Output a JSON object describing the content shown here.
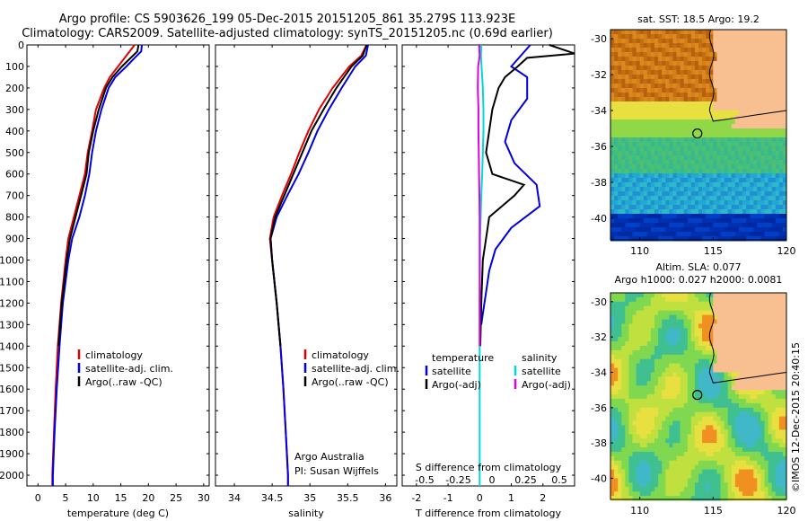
{
  "header": {
    "line1": "Argo profile: CS 5903626_199 05-Dec-2015 20151205_861 35.279S 113.923E",
    "line2": "Climatology: CARS2009. Satellite-adjusted climatology: synTS_20151205.nc (0.69d earlier)"
  },
  "chart_data": [
    {
      "type": "line",
      "xlabel": "temperature (deg C)",
      "ylabel": "",
      "xlim": [
        -2,
        31
      ],
      "ylim": [
        2050,
        0
      ],
      "xticks": [
        "0",
        "5",
        "10",
        "15",
        "20",
        "25",
        "30"
      ],
      "xtick_values": [
        0,
        5,
        10,
        15,
        20,
        25,
        30
      ],
      "yticks": [
        "0",
        "100",
        "200",
        "300",
        "400",
        "500",
        "600",
        "700",
        "800",
        "900",
        "1000",
        "1100",
        "1200",
        "1300",
        "1400",
        "1500",
        "1600",
        "1700",
        "1800",
        "1900",
        "2000"
      ],
      "ytick_values": [
        0,
        100,
        200,
        300,
        400,
        500,
        600,
        700,
        800,
        900,
        1000,
        1100,
        1200,
        1300,
        1400,
        1500,
        1600,
        1700,
        1800,
        1900,
        2000
      ],
      "legend": [
        "climatology",
        "satellite-adj. clim.",
        "Argo(..raw -QC)"
      ],
      "series": [
        {
          "name": "climatology",
          "color": "#e00000",
          "depth": [
            0,
            50,
            100,
            150,
            200,
            300,
            400,
            500,
            600,
            700,
            800,
            900,
            1000,
            1200,
            1400,
            1600,
            1800,
            2000,
            2050
          ],
          "values": [
            17.5,
            16.0,
            14.5,
            13.0,
            12.0,
            10.5,
            9.8,
            9.0,
            8.5,
            7.5,
            6.5,
            5.5,
            5.0,
            4.2,
            3.6,
            3.2,
            2.9,
            2.6,
            2.6
          ]
        },
        {
          "name": "satellite-adj. clim.",
          "color": "#0000e0",
          "depth": [
            0,
            30,
            60,
            100,
            150,
            200,
            300,
            400,
            500,
            600,
            700,
            800,
            900,
            1000,
            1200,
            1400,
            1600,
            1800,
            2000,
            2050
          ],
          "values": [
            18.8,
            18.7,
            17.5,
            16.0,
            14.0,
            12.8,
            11.5,
            10.5,
            9.8,
            9.3,
            8.5,
            7.5,
            6.2,
            5.5,
            4.5,
            3.9,
            3.4,
            3.0,
            2.7,
            2.7
          ]
        },
        {
          "name": "Argo(..raw -QC)",
          "color": "#000000",
          "depth": [
            0,
            30,
            60,
            100,
            150,
            200,
            300,
            400,
            500,
            600,
            700,
            800,
            900,
            1000,
            1200,
            1400
          ],
          "values": [
            18.2,
            18.0,
            16.8,
            15.2,
            13.5,
            12.3,
            11.0,
            10.0,
            9.2,
            8.8,
            7.8,
            6.8,
            5.8,
            5.2,
            4.3,
            3.7
          ]
        }
      ]
    },
    {
      "type": "line",
      "xlabel": "salinity",
      "ylabel": "",
      "xlim": [
        33.75,
        36.15
      ],
      "ylim": [
        2050,
        0
      ],
      "xticks": [
        "34",
        "34.5",
        "35",
        "35.5",
        "36"
      ],
      "xtick_values": [
        34,
        34.5,
        35,
        35.5,
        36
      ],
      "legend": [
        "climatology",
        "satellite-adj. clim.",
        "Argo(..raw -QC)"
      ],
      "annotation": [
        "Argo Australia",
        "PI: Susan Wijffels"
      ],
      "series": [
        {
          "name": "climatology",
          "color": "#e00000",
          "depth": [
            0,
            50,
            100,
            200,
            300,
            400,
            500,
            600,
            700,
            800,
            900,
            1000,
            1200,
            1400,
            1600,
            1800,
            2000,
            2050
          ],
          "values": [
            35.75,
            35.68,
            35.52,
            35.3,
            35.12,
            34.98,
            34.86,
            34.75,
            34.63,
            34.52,
            34.47,
            34.5,
            34.56,
            34.61,
            34.65,
            34.68,
            34.71,
            34.71
          ]
        },
        {
          "name": "satellite-adj. clim.",
          "color": "#0000e0",
          "depth": [
            0,
            50,
            100,
            200,
            300,
            400,
            500,
            600,
            700,
            800,
            900,
            1000,
            1200,
            1400,
            1600,
            1800,
            2000,
            2050
          ],
          "values": [
            35.77,
            35.74,
            35.6,
            35.42,
            35.25,
            35.1,
            34.98,
            34.85,
            34.7,
            34.56,
            34.48,
            34.5,
            34.56,
            34.61,
            34.65,
            34.68,
            34.71,
            34.71
          ]
        },
        {
          "name": "Argo(..raw -QC)",
          "color": "#000000",
          "depth": [
            0,
            50,
            100,
            200,
            300,
            400,
            500,
            600,
            700,
            800,
            900,
            1000,
            1200,
            1400
          ],
          "values": [
            35.75,
            35.7,
            35.55,
            35.35,
            35.18,
            35.02,
            34.9,
            34.78,
            34.66,
            34.54,
            34.48,
            34.5,
            34.56,
            34.61
          ]
        }
      ]
    },
    {
      "type": "line",
      "xlabel": "T difference from climatology",
      "xlabel2": "S difference from climatology",
      "xlim": [
        -2.45,
        3.0
      ],
      "ylim": [
        2050,
        0
      ],
      "xticks": [
        "-2",
        "-1",
        "0",
        "1",
        "2"
      ],
      "xtick_values": [
        -2,
        -1,
        0,
        1,
        2
      ],
      "xticks2": [
        "-0.5",
        "-0.25",
        "0",
        "0.25",
        "0.5"
      ],
      "xtick_values2": [
        -0.5,
        -0.25,
        0,
        0.25,
        0.5
      ],
      "legend_temperature": {
        "heading": "temperature",
        "items": [
          "satellite",
          "Argo(-adj)"
        ]
      },
      "legend_salinity": {
        "heading": "salinity",
        "items": [
          "satellite",
          "Argo(-adj)"
        ]
      },
      "series": [
        {
          "name": "satellite",
          "color": "#0000e0",
          "depth": [
            0,
            50,
            100,
            150,
            250,
            350,
            450,
            550,
            650,
            750,
            850,
            950,
            1050,
            1150,
            1250,
            1300
          ],
          "values": [
            1.6,
            1.3,
            1.0,
            1.5,
            1.5,
            1.0,
            0.8,
            1.1,
            1.8,
            1.9,
            1.0,
            0.5,
            0.3,
            0.2,
            0.1,
            0.05
          ]
        },
        {
          "name": "Argo(-adj)",
          "color": "#000000",
          "depth": [
            0,
            20,
            40,
            60,
            100,
            150,
            200,
            300,
            400,
            500,
            600,
            650,
            700,
            800,
            900,
            1000,
            1200,
            1400
          ],
          "values": [
            2.2,
            2.6,
            3.0,
            1.5,
            1.2,
            0.8,
            0.6,
            0.4,
            0.3,
            0.2,
            0.4,
            1.4,
            1.1,
            0.3,
            0.2,
            0.1,
            0.05,
            0.02
          ]
        },
        {
          "name": "satellite",
          "color": "#00d8d8",
          "depth": [
            0,
            50,
            100,
            200,
            300,
            400,
            500,
            600,
            700,
            800,
            900,
            1000,
            1200,
            1400,
            1600,
            1800,
            2000,
            2050
          ],
          "values": [
            0.05,
            0.04,
            0.06,
            0.1,
            0.12,
            0.12,
            0.1,
            0.08,
            0.05,
            0.03,
            0.01,
            0.01,
            0.0,
            0.0,
            0.0,
            0.0,
            0.0,
            0.0
          ]
        },
        {
          "name": "Argo(-adj)",
          "color": "#e000e0",
          "depth": [
            0,
            50,
            100,
            200,
            300,
            400,
            500,
            600,
            700,
            800,
            900,
            1000,
            1200,
            1400
          ],
          "values": [
            -0.02,
            0.0,
            -0.05,
            -0.06,
            -0.04,
            -0.04,
            -0.03,
            -0.02,
            -0.01,
            0.0,
            0.0,
            0.0,
            0.0,
            0.0
          ]
        }
      ]
    },
    {
      "type": "heatmap",
      "title": "sat. SST: 18.5  Argo: 19.2",
      "xlim": [
        108,
        120
      ],
      "ylim": [
        -41.2,
        -29.5
      ],
      "xticks": [
        "110",
        "115",
        "120"
      ],
      "xtick_values": [
        110,
        115,
        120
      ],
      "yticks": [
        "-30",
        "-32",
        "-34",
        "-36",
        "-38",
        "-40"
      ],
      "ytick_values": [
        -30,
        -32,
        -34,
        -36,
        -38,
        -40
      ],
      "argo_position": [
        113.923,
        -35.279
      ],
      "land_color": "#f8c090"
    },
    {
      "type": "heatmap",
      "title_line1": "Altim. SLA: 0.077",
      "title_line2": "Argo h1000: 0.027 h2000: 0.0081",
      "xlim": [
        108,
        120
      ],
      "ylim": [
        -41.2,
        -29.5
      ],
      "xticks": [
        "110",
        "115",
        "120"
      ],
      "xtick_values": [
        110,
        115,
        120
      ],
      "yticks": [
        "-30",
        "-32",
        "-34",
        "-36",
        "-38",
        "-40"
      ],
      "ytick_values": [
        -30,
        -32,
        -34,
        -36,
        -38,
        -40
      ],
      "argo_position": [
        113.923,
        -35.279
      ],
      "land_color": "#f8c090"
    }
  ],
  "credit": "©IMOS 12-Dec-2015 20:40:15"
}
